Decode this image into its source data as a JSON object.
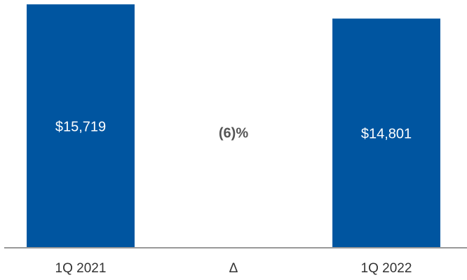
{
  "chart_data": {
    "type": "bar",
    "categories": [
      "1Q 2021",
      "Δ",
      "1Q 2022"
    ],
    "values": [
      15719,
      null,
      14801
    ],
    "value_labels": [
      "$15,719",
      null,
      "$14,801"
    ],
    "annotation": "(6)%",
    "color": "#0055a0",
    "ylim": [
      0,
      16000
    ]
  }
}
